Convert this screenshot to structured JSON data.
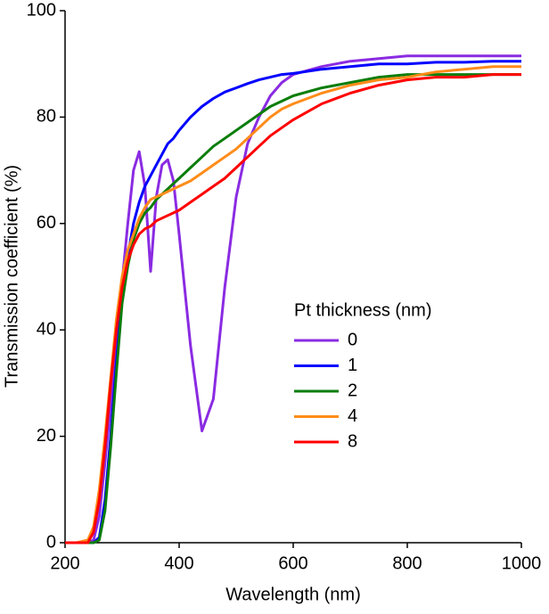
{
  "chart_data": {
    "type": "line",
    "x_label": "Wavelength (nm)",
    "y_label": "Transmission coefficient (%)",
    "legend_title": "Pt thickness (nm)",
    "xlim": [
      200,
      1000
    ],
    "xticks": [
      200,
      400,
      600,
      800,
      1000
    ],
    "ylim": [
      0,
      100
    ],
    "yticks": [
      0,
      20,
      40,
      60,
      80,
      100
    ],
    "x": [
      200,
      220,
      240,
      250,
      260,
      270,
      280,
      290,
      300,
      310,
      320,
      330,
      340,
      350,
      360,
      370,
      380,
      390,
      400,
      420,
      440,
      460,
      480,
      500,
      520,
      540,
      560,
      580,
      600,
      650,
      700,
      750,
      800,
      850,
      900,
      950,
      1000
    ],
    "series": [
      {
        "name": "0",
        "color": "#8a2be2",
        "values": [
          0,
          0,
          0,
          0.5,
          5,
          15,
          26,
          38,
          49,
          60,
          70,
          73.5,
          67,
          51,
          65,
          71,
          72,
          68,
          58,
          37,
          21,
          27,
          48,
          65,
          75,
          80,
          84,
          86.5,
          88,
          89.5,
          90.5,
          91,
          91.5,
          91.5,
          91.5,
          91.5,
          91.5
        ]
      },
      {
        "name": "1",
        "color": "#0000ff",
        "values": [
          0,
          0,
          0,
          0,
          1,
          8,
          20,
          34,
          46,
          54,
          60,
          64,
          67,
          69,
          71,
          73,
          75,
          76,
          77.5,
          80,
          82,
          83.5,
          84.7,
          85.5,
          86.3,
          87,
          87.5,
          88,
          88.2,
          89,
          89.5,
          90,
          90,
          90.3,
          90.3,
          90.5,
          90.5
        ]
      },
      {
        "name": "2",
        "color": "#0a7d0a",
        "values": [
          0,
          0,
          0,
          0,
          0.5,
          6,
          18,
          32,
          45,
          52,
          57,
          60,
          62,
          63,
          64.5,
          65.5,
          66.5,
          67.5,
          68.5,
          70.5,
          72.5,
          74.5,
          76,
          77.5,
          79,
          80.5,
          82,
          83,
          84,
          85.5,
          86.5,
          87.5,
          88,
          88,
          88,
          88,
          88
        ]
      },
      {
        "name": "4",
        "color": "#ff8c1a",
        "values": [
          0,
          0,
          0.5,
          3,
          10,
          20,
          31,
          42,
          50,
          55,
          58,
          61,
          63,
          64.5,
          65,
          65.5,
          66,
          66.5,
          67,
          68,
          69.5,
          71,
          72.5,
          74,
          76,
          78,
          80,
          81.5,
          82.5,
          84.5,
          86,
          87,
          87.5,
          88.5,
          89,
          89.5,
          89.5
        ]
      },
      {
        "name": "8",
        "color": "#ff0000",
        "values": [
          0,
          0,
          0,
          2,
          8,
          18,
          30,
          40,
          48,
          53,
          56,
          58,
          59,
          59.5,
          60.5,
          61,
          61.5,
          62,
          62.5,
          64,
          65.5,
          67,
          68.5,
          70.5,
          72.5,
          74.5,
          76.5,
          78,
          79.5,
          82.5,
          84.5,
          86,
          87,
          87.5,
          87.5,
          88,
          88
        ]
      }
    ]
  }
}
